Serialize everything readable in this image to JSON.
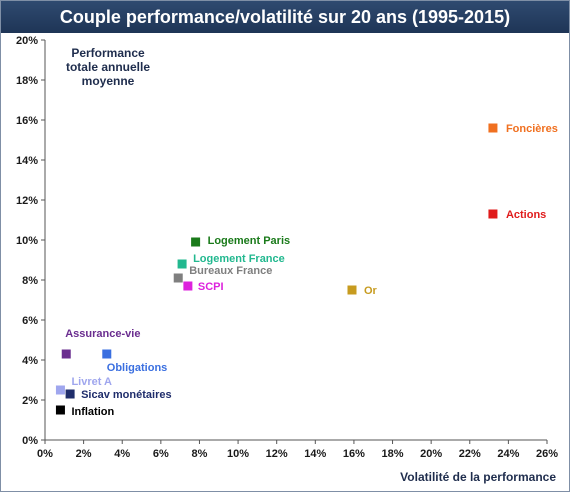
{
  "title": "Couple performance/volatilité sur 20 ans (1995-2015)",
  "chart_data": {
    "type": "scatter",
    "title": "Couple performance/volatilité sur 20 ans (1995-2015)",
    "xlabel": "Volatilité de la performance",
    "ylabel_lines": [
      "Performance",
      "totale annuelle",
      "moyenne"
    ],
    "xlim": [
      0,
      26
    ],
    "ylim": [
      0,
      20
    ],
    "x_ticks": [
      "0%",
      "2%",
      "4%",
      "6%",
      "8%",
      "10%",
      "12%",
      "14%",
      "16%",
      "18%",
      "20%",
      "22%",
      "24%",
      "26%"
    ],
    "y_ticks": [
      "0%",
      "2%",
      "4%",
      "6%",
      "8%",
      "10%",
      "12%",
      "14%",
      "16%",
      "18%",
      "20%"
    ],
    "grid": false,
    "points": [
      {
        "label": "Foncières",
        "x": 23.2,
        "y": 15.6,
        "color": "#f07020"
      },
      {
        "label": "Actions",
        "x": 23.2,
        "y": 11.3,
        "color": "#e01b1b"
      },
      {
        "label": "Logement Paris",
        "x": 7.8,
        "y": 9.9,
        "color": "#1a7a1a"
      },
      {
        "label": "Logement France",
        "x": 7.1,
        "y": 8.8,
        "color": "#22b88f"
      },
      {
        "label": "Bureaux France",
        "x": 6.9,
        "y": 8.1,
        "color": "#7f7f7f"
      },
      {
        "label": "SCPI",
        "x": 7.4,
        "y": 7.7,
        "color": "#dd22dd"
      },
      {
        "label": "Or",
        "x": 15.9,
        "y": 7.5,
        "color": "#c79b1f"
      },
      {
        "label": "Assurance-vie",
        "x": 1.1,
        "y": 4.3,
        "color": "#6a2d8f"
      },
      {
        "label": "Obligations",
        "x": 3.2,
        "y": 4.3,
        "color": "#3a6fe0"
      },
      {
        "label": "Livret A",
        "x": 0.8,
        "y": 2.5,
        "color": "#9fa6ee"
      },
      {
        "label": "Sicav monétaires",
        "x": 1.3,
        "y": 2.3,
        "color": "#1f2d6b"
      },
      {
        "label": "Inflation",
        "x": 0.8,
        "y": 1.5,
        "color": "#000000"
      }
    ]
  }
}
